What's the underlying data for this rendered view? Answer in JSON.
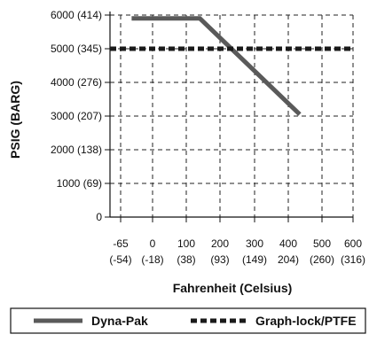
{
  "chart_data": {
    "type": "line",
    "title": "",
    "xlabel": "Fahrenheit (Celsius)",
    "ylabel": "PSIG (BARG)",
    "x_ticks": [
      {
        "value": -65,
        "label": "-65",
        "sublabel": "(-54)"
      },
      {
        "value": 0,
        "label": "0",
        "sublabel": "(-18)"
      },
      {
        "value": 100,
        "label": "100",
        "sublabel": "(38)"
      },
      {
        "value": 200,
        "label": "200",
        "sublabel": "(93)"
      },
      {
        "value": 300,
        "label": "300",
        "sublabel": "(149)"
      },
      {
        "value": 400,
        "label": "400",
        "sublabel": "204)"
      },
      {
        "value": 500,
        "label": "500",
        "sublabel": "(260)"
      },
      {
        "value": 600,
        "label": "600",
        "sublabel": "(316)"
      }
    ],
    "y_ticks": [
      {
        "value": 0,
        "label": "0"
      },
      {
        "value": 1000,
        "label": "1000 (69)"
      },
      {
        "value": 2000,
        "label": "2000 (138)"
      },
      {
        "value": 3000,
        "label": "3000 (207)"
      },
      {
        "value": 4000,
        "label": "4000 (276)"
      },
      {
        "value": 5000,
        "label": "5000 (345)"
      },
      {
        "value": 6000,
        "label": "6000 (414)"
      }
    ],
    "xlim": [
      -130,
      600
    ],
    "ylim": [
      0,
      6000
    ],
    "grid": true,
    "legend_position": "bottom",
    "series": [
      {
        "name": "Dyna-Pak",
        "style": "solid",
        "color": "#5a5a5a",
        "x": [
          -65,
          140,
          440
        ],
        "y": [
          5900,
          5900,
          3050
        ]
      },
      {
        "name": "Graph-lock/PTFE",
        "style": "dashed",
        "color": "#1a1a1a",
        "x": [
          -130,
          600
        ],
        "y": [
          5000,
          5000
        ]
      }
    ]
  }
}
